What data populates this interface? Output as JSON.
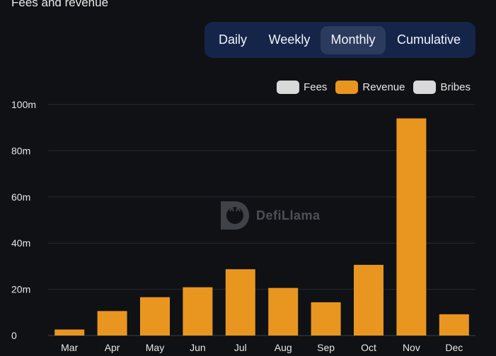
{
  "header": {
    "title": "Fees and revenue"
  },
  "tabs": [
    {
      "label": "Daily"
    },
    {
      "label": "Weekly"
    },
    {
      "label": "Monthly"
    },
    {
      "label": "Cumulative"
    }
  ],
  "selected_tab": "Monthly",
  "legend": [
    {
      "label": "Fees",
      "color": "#d9d9d9"
    },
    {
      "label": "Revenue",
      "color": "#e8961f"
    },
    {
      "label": "Bribes",
      "color": "#d9d9d9"
    }
  ],
  "watermark": {
    "text": "DefiLlama"
  },
  "chart_data": {
    "type": "bar",
    "categories": [
      "Mar",
      "Apr",
      "May",
      "Jun",
      "Jul",
      "Aug",
      "Sep",
      "Oct",
      "Nov",
      "Dec"
    ],
    "series": [
      {
        "name": "Revenue",
        "color": "#e8961f",
        "values": [
          2.6,
          10.6,
          16.6,
          20.9,
          28.7,
          20.6,
          14.4,
          30.6,
          94.0,
          9.2
        ]
      }
    ],
    "y_unit": "m",
    "ylim": [
      0,
      100
    ],
    "yticks": [
      0,
      20,
      40,
      60,
      80,
      100
    ],
    "ytick_labels": [
      "0",
      "20m",
      "40m",
      "60m",
      "80m",
      "100m"
    ],
    "grid": true,
    "legend_position": "top-right"
  }
}
